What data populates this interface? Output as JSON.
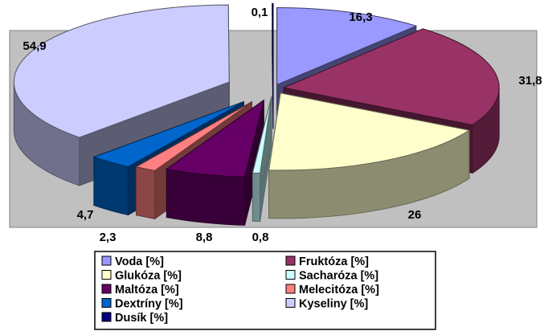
{
  "chart_data": {
    "type": "pie",
    "style": "3d-exploded",
    "unit": "%",
    "series": [
      {
        "name": "Voda [%]",
        "label": "16,3",
        "value": 16.3,
        "color": "#9999ff"
      },
      {
        "name": "Fruktóza [%]",
        "label": "31,8",
        "value": 31.8,
        "color": "#993366"
      },
      {
        "name": "Glukóza [%]",
        "label": "26",
        "value": 26.0,
        "color": "#ffffcc"
      },
      {
        "name": "Sacharóza [%]",
        "label": "0,8",
        "value": 0.8,
        "color": "#ccffff"
      },
      {
        "name": "Maltóza [%]",
        "label": "8,8",
        "value": 8.8,
        "color": "#660066"
      },
      {
        "name": "Melecitóza [%]",
        "label": "2,3",
        "value": 2.3,
        "color": "#ff8080"
      },
      {
        "name": "Dextríny [%]",
        "label": "4,7",
        "value": 4.7,
        "color": "#0066cc"
      },
      {
        "name": "Kyseliny [%]",
        "label": "54,9",
        "value": 54.9,
        "color": "#ccccff"
      },
      {
        "name": "Dusík [%]",
        "label": "0,1",
        "value": 0.1,
        "color": "#000080"
      }
    ],
    "legend_position": "bottom",
    "plot_background": "#c0c0c0"
  }
}
